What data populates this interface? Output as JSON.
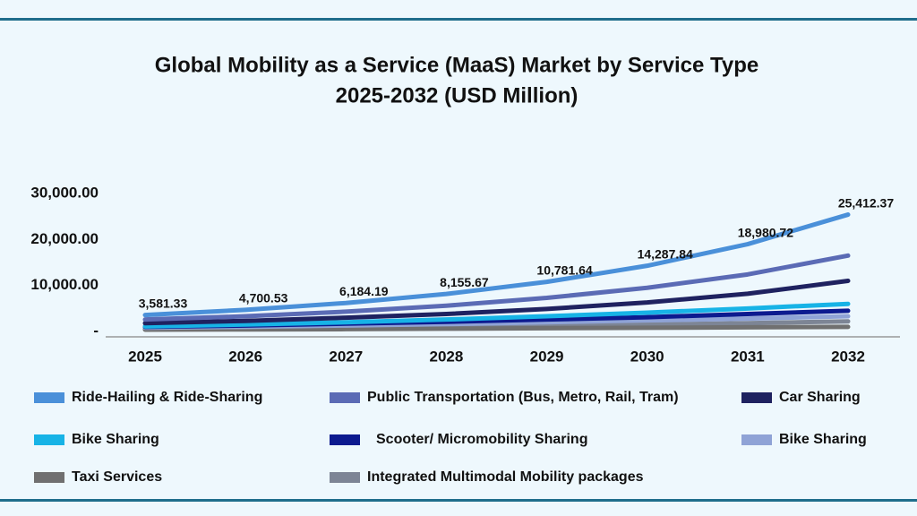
{
  "chart_data": {
    "type": "line",
    "title": [
      "Global Mobility as a Service (MaaS) Market by Service Type",
      "2025-2032 (USD Million)"
    ],
    "categories": [
      "2025",
      "2026",
      "2027",
      "2028",
      "2029",
      "2030",
      "2031",
      "2032"
    ],
    "ylim": [
      0,
      30000
    ],
    "yticks": [
      {
        "value": 0,
        "label": "-"
      },
      {
        "value": 10000,
        "label": "10,000.00"
      },
      {
        "value": 20000,
        "label": "20,000.00"
      },
      {
        "value": 30000,
        "label": "30,000.00"
      }
    ],
    "grid": false,
    "legend": "bottom",
    "series": [
      {
        "name": "Ride-Hailing & Ride-Sharing",
        "color": "#4a90d9",
        "values": [
          3581.33,
          4700.53,
          6184.19,
          8155.67,
          10781.64,
          14287.84,
          18980.72,
          25412.37
        ],
        "value_labels": [
          "3,581.33",
          "4,700.53",
          "6,184.19",
          "8,155.67",
          "10,781.64",
          "14,287.84",
          "18,980.72",
          "25,412.37"
        ]
      },
      {
        "name": "Public Transportation (Bus, Metro, Rail, Tram)",
        "color": "#5b6bb5",
        "values": [
          2600,
          3300,
          4300,
          5600,
          7300,
          9500,
          12400,
          16500
        ]
      },
      {
        "name": "Car Sharing",
        "color": "#1f2260",
        "values": [
          1800,
          2300,
          3000,
          3800,
          4900,
          6300,
          8200,
          11000
        ]
      },
      {
        "name": "Bike Sharing",
        "color": "#17b3e6",
        "values": [
          1100,
          1500,
          2000,
          2600,
          3300,
          4100,
          5000,
          6000
        ]
      },
      {
        "name": "Scooter/ Micromobility Sharing",
        "color": "#0c1a8f",
        "values": [
          1000,
          1300,
          1700,
          2100,
          2600,
          3100,
          3800,
          4500
        ]
      },
      {
        "name": "Bike Sharing",
        "color": "#8fa3d6",
        "values": [
          800,
          1000,
          1300,
          1600,
          2000,
          2400,
          2800,
          3300
        ]
      },
      {
        "name": "Taxi Services",
        "color": "#707070",
        "values": [
          400,
          450,
          500,
          600,
          700,
          800,
          900,
          1000
        ]
      },
      {
        "name": "Integrated Multimodal Mobility packages",
        "color": "#7d8595",
        "values": [
          600,
          700,
          800,
          1000,
          1200,
          1500,
          1800,
          2200
        ]
      }
    ]
  }
}
